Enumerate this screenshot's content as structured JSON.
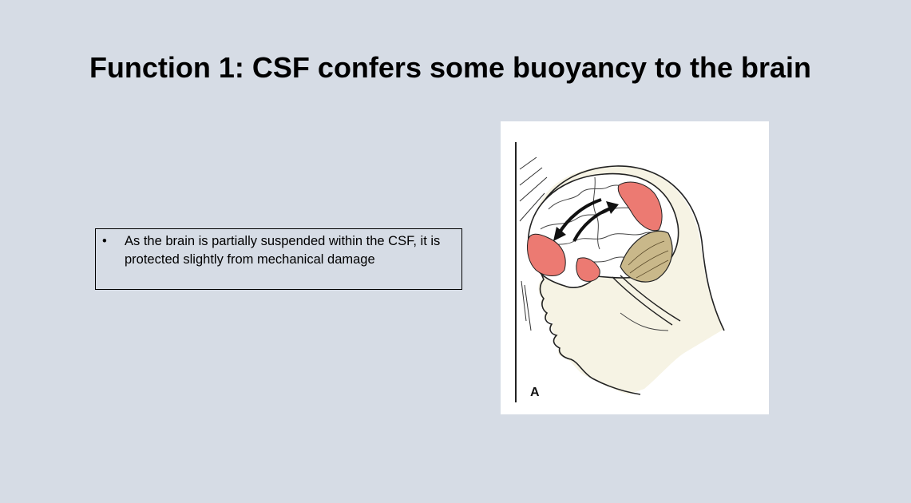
{
  "slide": {
    "title": "Function 1: CSF confers some buoyancy to the brain",
    "bullets": [
      {
        "marker": "•",
        "text": "As the brain is partially suspended within the CSF, it is protected slightly from mechanical damage"
      }
    ],
    "figure": {
      "label": "A",
      "icon": "brain-head-illustration-icon",
      "colors": {
        "impact_zone": "#ec7a72",
        "cerebellum": "#c9b88a",
        "skin": "#f6f3e4",
        "outline": "#222222"
      }
    }
  },
  "colors": {
    "background": "#d6dce5"
  }
}
